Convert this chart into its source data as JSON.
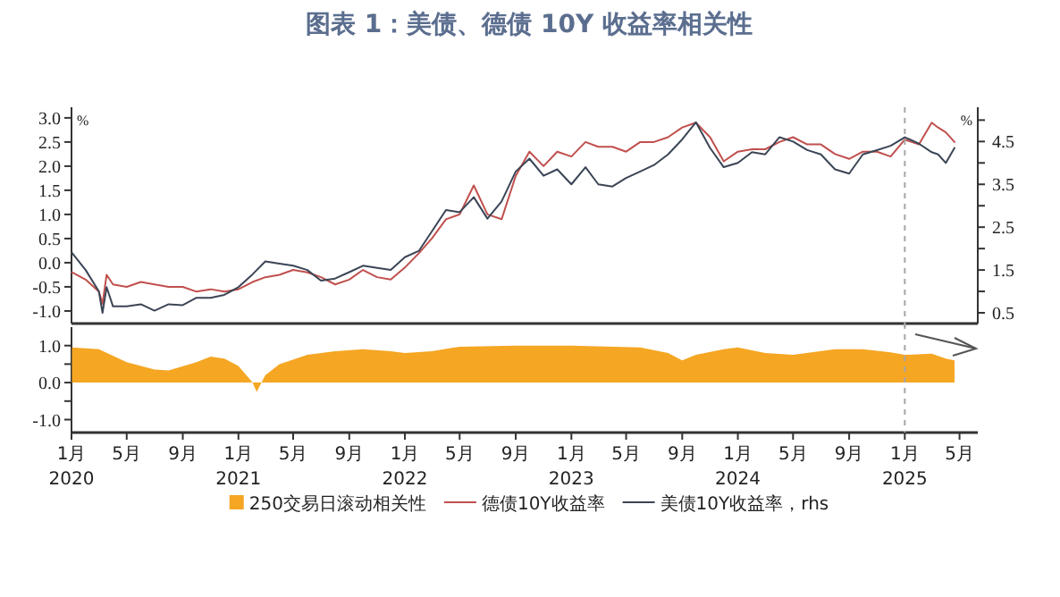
{
  "chart_data": [
    {
      "type": "line",
      "title": "图表 1：美债、德债 10Y 收益率相关性",
      "ylabel": "%",
      "y2label": "%",
      "xlim": [
        "2020-01-01",
        "2025-06-10"
      ],
      "ylim": [
        -1.26,
        3.22
      ],
      "yticks": [
        {
          "value": 3,
          "label": "3.0"
        },
        {
          "value": 2.5,
          "label": "2.5"
        },
        {
          "value": 2,
          "label": "2.0"
        },
        {
          "value": 1.5,
          "label": "1.5"
        },
        {
          "value": 1,
          "label": "1.0"
        },
        {
          "value": 0.5,
          "label": "0.5"
        },
        {
          "value": 0,
          "label": "0.0"
        },
        {
          "value": -0.5,
          "label": "-0.5"
        },
        {
          "value": -1,
          "label": "-1.0"
        }
      ],
      "y2lim": [
        0.25,
        5.3
      ],
      "y2ticks": [
        0.5,
        {
          "value": 1,
          "label": null
        },
        1.5,
        {
          "value": 2,
          "label": null
        },
        2.5,
        {
          "value": 3,
          "label": null
        },
        3.5,
        {
          "value": 4,
          "label": null
        },
        4.5,
        {
          "value": 5,
          "label": null
        }
      ],
      "tick_labels": "y",
      "legend": "bottom",
      "ref_lines": [
        {
          "axis": "x",
          "value": "2025-01-01",
          "color": "#a6a6a6",
          "line_style": "dashed"
        }
      ],
      "series": [
        {
          "name": "德债10Y收益率",
          "color": "#c0504d",
          "x": [
            "2020-01-02",
            "2020-02-01",
            "2020-03-01",
            "2020-03-09",
            "2020-03-18",
            "2020-04-01",
            "2020-05-01",
            "2020-06-01",
            "2020-07-01",
            "2020-08-01",
            "2020-09-01",
            "2020-10-01",
            "2020-11-01",
            "2020-12-01",
            "2021-01-01",
            "2021-02-01",
            "2021-03-01",
            "2021-04-01",
            "2021-05-01",
            "2021-06-01",
            "2021-07-01",
            "2021-08-01",
            "2021-09-01",
            "2021-10-01",
            "2021-11-01",
            "2021-12-01",
            "2022-01-01",
            "2022-02-01",
            "2022-03-01",
            "2022-04-01",
            "2022-05-01",
            "2022-06-01",
            "2022-07-01",
            "2022-08-01",
            "2022-09-01",
            "2022-10-01",
            "2022-11-01",
            "2022-12-01",
            "2023-01-01",
            "2023-02-01",
            "2023-03-01",
            "2023-04-01",
            "2023-05-01",
            "2023-06-01",
            "2023-07-01",
            "2023-08-01",
            "2023-09-01",
            "2023-10-01",
            "2023-11-01",
            "2023-12-01",
            "2024-01-01",
            "2024-02-01",
            "2024-03-01",
            "2024-04-01",
            "2024-05-01",
            "2024-06-01",
            "2024-07-01",
            "2024-08-01",
            "2024-09-01",
            "2024-10-01",
            "2024-11-01",
            "2024-12-01",
            "2025-01-01",
            "2025-02-01",
            "2025-03-01",
            "2025-03-15",
            "2025-04-01",
            "2025-04-20"
          ],
          "values": [
            -0.2,
            -0.35,
            -0.6,
            -0.85,
            -0.25,
            -0.45,
            -0.5,
            -0.4,
            -0.45,
            -0.5,
            -0.5,
            -0.6,
            -0.55,
            -0.6,
            -0.55,
            -0.4,
            -0.3,
            -0.25,
            -0.15,
            -0.2,
            -0.3,
            -0.45,
            -0.35,
            -0.15,
            -0.3,
            -0.35,
            -0.1,
            0.2,
            0.5,
            0.9,
            1.0,
            1.6,
            1.0,
            0.9,
            1.8,
            2.3,
            2.0,
            2.3,
            2.2,
            2.5,
            2.4,
            2.4,
            2.3,
            2.5,
            2.5,
            2.6,
            2.8,
            2.9,
            2.6,
            2.1,
            2.3,
            2.35,
            2.35,
            2.5,
            2.6,
            2.45,
            2.45,
            2.25,
            2.15,
            2.3,
            2.3,
            2.2,
            2.55,
            2.45,
            2.9,
            2.8,
            2.7,
            2.5
          ]
        },
        {
          "name": "美债10Y收益率，rhs",
          "color": "#3b4556",
          "axis": "y2",
          "x": [
            "2020-01-02",
            "2020-02-01",
            "2020-03-01",
            "2020-03-09",
            "2020-03-18",
            "2020-04-01",
            "2020-05-01",
            "2020-06-01",
            "2020-07-01",
            "2020-08-01",
            "2020-09-01",
            "2020-10-01",
            "2020-11-01",
            "2020-12-01",
            "2021-01-01",
            "2021-02-01",
            "2021-03-01",
            "2021-04-01",
            "2021-05-01",
            "2021-06-01",
            "2021-07-01",
            "2021-08-01",
            "2021-09-01",
            "2021-10-01",
            "2021-11-01",
            "2021-12-01",
            "2022-01-01",
            "2022-02-01",
            "2022-03-01",
            "2022-04-01",
            "2022-05-01",
            "2022-06-01",
            "2022-07-01",
            "2022-08-01",
            "2022-09-01",
            "2022-10-01",
            "2022-11-01",
            "2022-12-01",
            "2023-01-01",
            "2023-02-01",
            "2023-03-01",
            "2023-04-01",
            "2023-05-01",
            "2023-06-01",
            "2023-07-01",
            "2023-08-01",
            "2023-09-01",
            "2023-10-01",
            "2023-11-01",
            "2023-12-01",
            "2024-01-01",
            "2024-02-01",
            "2024-03-01",
            "2024-04-01",
            "2024-05-01",
            "2024-06-01",
            "2024-07-01",
            "2024-08-01",
            "2024-09-01",
            "2024-10-01",
            "2024-11-01",
            "2024-12-01",
            "2025-01-01",
            "2025-02-01",
            "2025-03-01",
            "2025-03-15",
            "2025-04-01",
            "2025-04-20"
          ],
          "values": [
            1.9,
            1.5,
            1.0,
            0.5,
            1.1,
            0.65,
            0.65,
            0.7,
            0.55,
            0.7,
            0.68,
            0.85,
            0.85,
            0.92,
            1.1,
            1.4,
            1.7,
            1.65,
            1.6,
            1.5,
            1.25,
            1.3,
            1.45,
            1.6,
            1.55,
            1.5,
            1.8,
            1.95,
            2.4,
            2.9,
            2.85,
            3.2,
            2.7,
            3.1,
            3.8,
            4.1,
            3.7,
            3.85,
            3.5,
            3.9,
            3.5,
            3.45,
            3.65,
            3.8,
            3.95,
            4.2,
            4.55,
            4.95,
            4.35,
            3.9,
            4.0,
            4.25,
            4.2,
            4.6,
            4.5,
            4.3,
            4.2,
            3.85,
            3.75,
            4.2,
            4.3,
            4.4,
            4.6,
            4.45,
            4.25,
            4.2,
            4.0,
            4.35
          ]
        }
      ]
    },
    {
      "type": "area",
      "xlim": [
        "2020-01-01",
        "2025-06-10"
      ],
      "ylim": [
        -1.35,
        1.5
      ],
      "yticks": [
        {
          "value": 1,
          "label": "1.0"
        },
        {
          "value": 0.5,
          "label": null
        },
        {
          "value": 0,
          "label": "0.0"
        },
        {
          "value": -0.5,
          "label": null
        },
        {
          "value": -1,
          "label": "-1.0"
        }
      ],
      "xticks": [
        {
          "value": "2020-01-01",
          "label": "1月\n2020"
        },
        {
          "value": "2020-05-01",
          "label": "5月"
        },
        {
          "value": "2020-09-01",
          "label": "9月"
        },
        {
          "value": "2021-01-01",
          "label": "1月\n2021"
        },
        {
          "value": "2021-05-01",
          "label": "5月"
        },
        {
          "value": "2021-09-01",
          "label": "9月"
        },
        {
          "value": "2022-01-01",
          "label": "1月\n2022"
        },
        {
          "value": "2022-05-01",
          "label": "5月"
        },
        {
          "value": "2022-09-01",
          "label": "9月"
        },
        {
          "value": "2023-01-01",
          "label": "1月\n2023"
        },
        {
          "value": "2023-05-01",
          "label": "5月"
        },
        {
          "value": "2023-09-01",
          "label": "9月"
        },
        {
          "value": "2024-01-01",
          "label": "1月\n2024"
        },
        {
          "value": "2024-05-01",
          "label": "5月"
        },
        {
          "value": "2024-09-01",
          "label": "9月"
        },
        {
          "value": "2025-01-01",
          "label": "1月\n2025"
        },
        {
          "value": "2025-05-01",
          "label": "5月"
        }
      ],
      "legend": "bottom",
      "ref_lines": [
        {
          "axis": "x",
          "value": "2025-01-01",
          "color": "#a6a6a6",
          "line_style": "dashed"
        }
      ],
      "series": [
        {
          "name": "250交易日滚动相关性",
          "color": "#f5a623",
          "x": [
            "2020-01-02",
            "2020-03-01",
            "2020-05-01",
            "2020-07-01",
            "2020-08-01",
            "2020-10-01",
            "2020-11-01",
            "2020-12-01",
            "2021-01-01",
            "2021-02-01",
            "2021-02-10",
            "2021-03-01",
            "2021-04-01",
            "2021-06-01",
            "2021-08-01",
            "2021-10-01",
            "2021-12-01",
            "2022-01-01",
            "2022-03-01",
            "2022-05-01",
            "2022-09-01",
            "2023-01-01",
            "2023-06-01",
            "2023-08-01",
            "2023-09-01",
            "2023-10-01",
            "2023-12-01",
            "2024-01-01",
            "2024-03-01",
            "2024-05-01",
            "2024-08-01",
            "2024-10-01",
            "2024-12-01",
            "2025-01-01",
            "2025-03-01",
            "2025-04-01",
            "2025-04-20"
          ],
          "values": [
            0.95,
            0.9,
            0.55,
            0.35,
            0.33,
            0.55,
            0.7,
            0.65,
            0.45,
            0.0,
            -0.25,
            0.2,
            0.5,
            0.75,
            0.85,
            0.9,
            0.85,
            0.8,
            0.85,
            0.97,
            1.0,
            1.0,
            0.95,
            0.8,
            0.6,
            0.75,
            0.9,
            0.95,
            0.8,
            0.75,
            0.9,
            0.9,
            0.82,
            0.75,
            0.78,
            0.65,
            0.6
          ]
        }
      ]
    }
  ]
}
